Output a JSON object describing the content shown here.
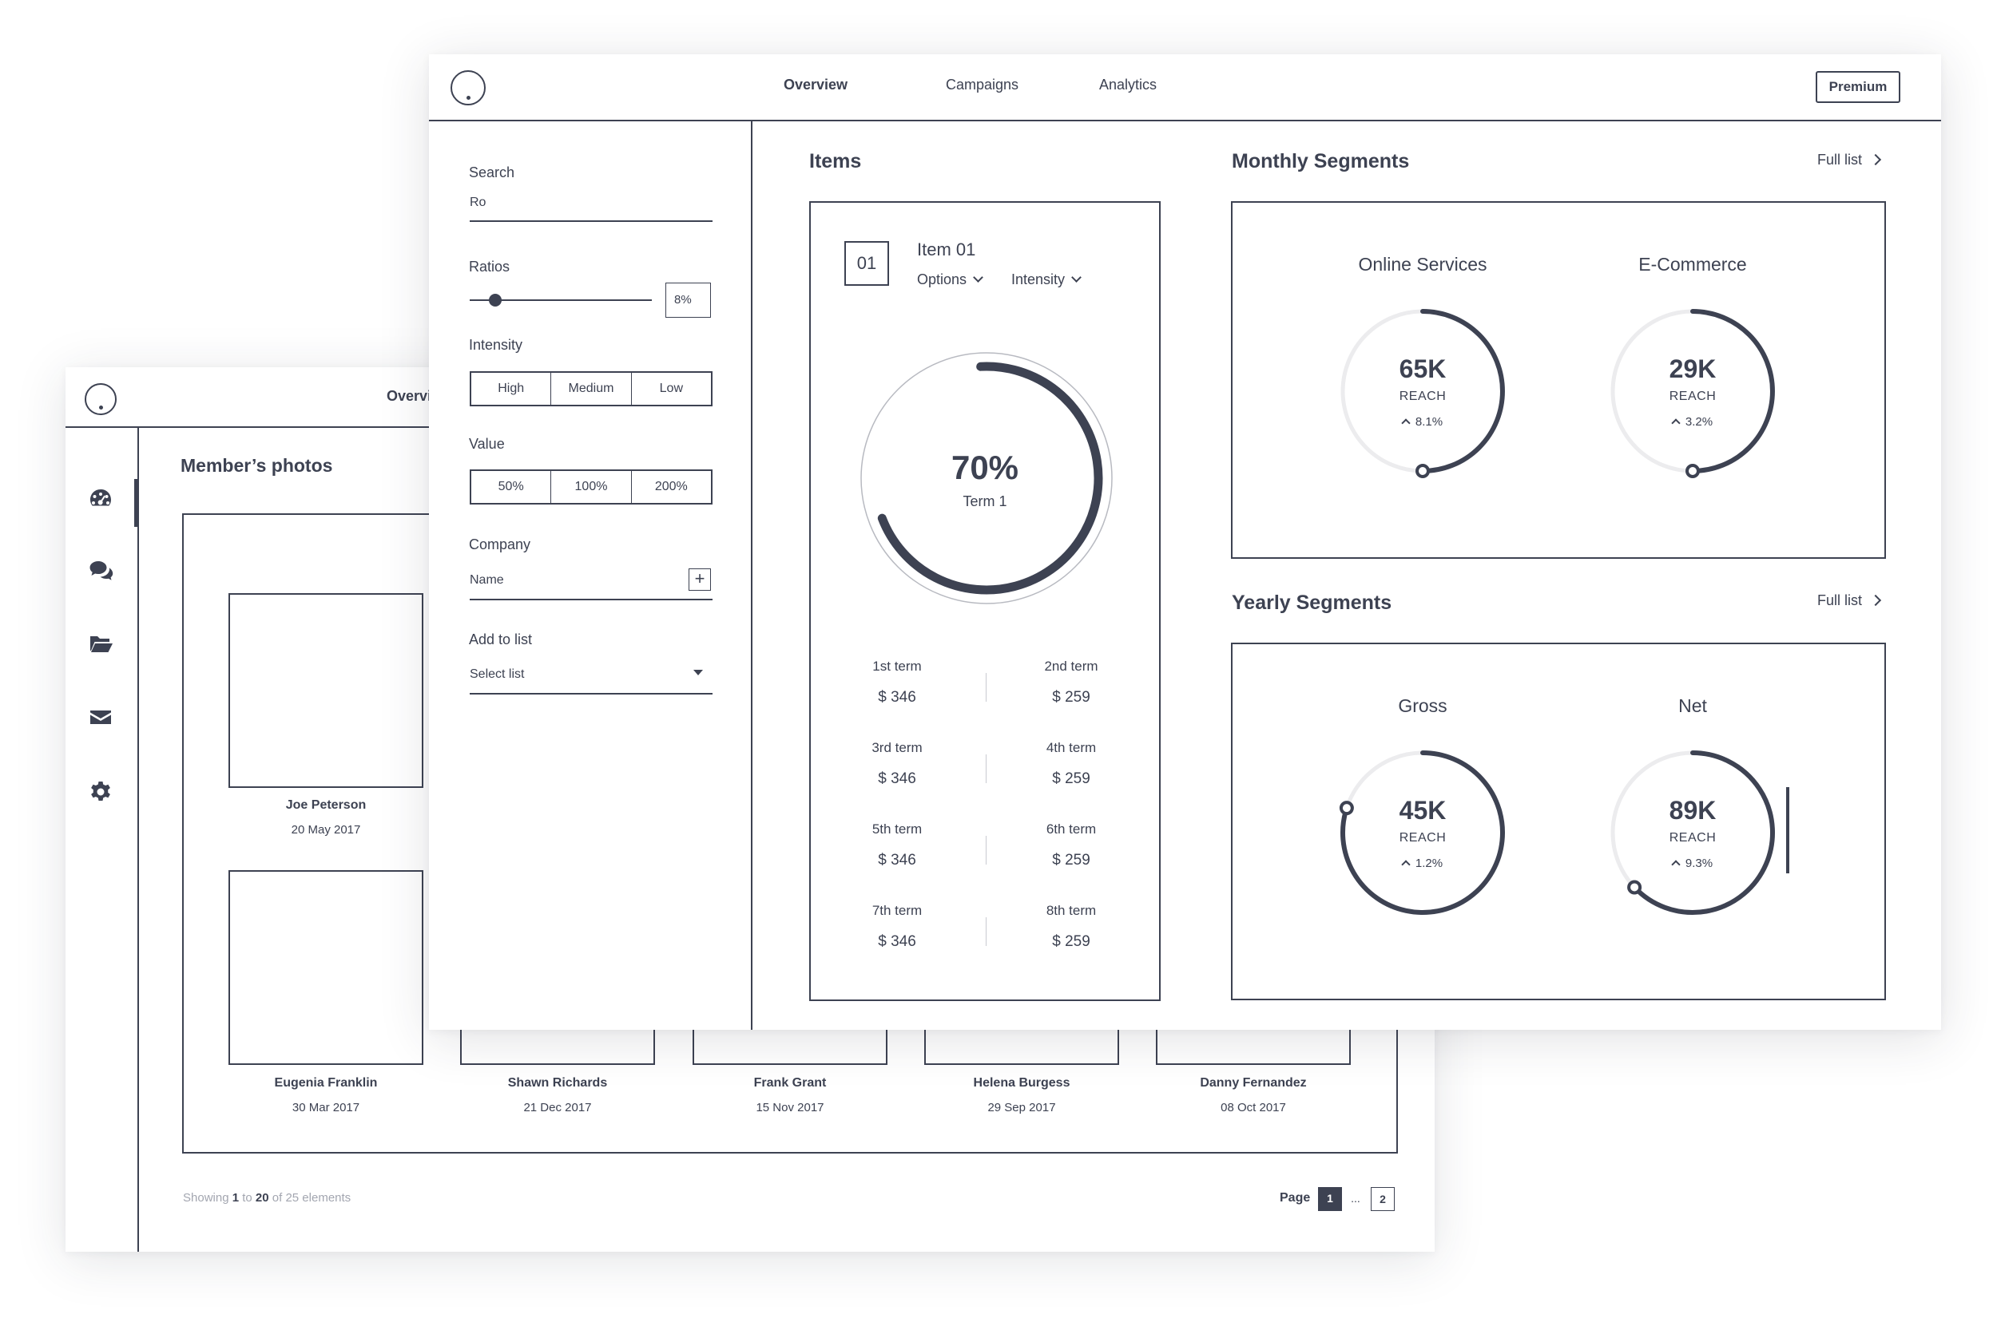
{
  "back": {
    "nav_partial": "Overvi",
    "title": "Member’s photos",
    "sidebar_icons": [
      "dashboard-icon",
      "chat-icon",
      "folder-icon",
      "mail-icon",
      "settings-icon"
    ],
    "members": [
      {
        "name": "Joe Peterson",
        "date": "20 May 2017"
      },
      {
        "name": "Eugenia Franklin",
        "date": "30 Mar 2017"
      },
      {
        "name": "Shawn Richards",
        "date": "21 Dec 2017"
      },
      {
        "name": "Frank Grant",
        "date": "15 Nov 2017"
      },
      {
        "name": "Helena Burgess",
        "date": "29 Sep 2017"
      },
      {
        "name": "Danny Fernandez",
        "date": "08 Oct 2017"
      }
    ],
    "pagination": {
      "showing_prefix": "Showing",
      "from": "1",
      "to_word": "to",
      "to": "20",
      "of_text": "of 25 elements",
      "page_label": "Page",
      "current": "1",
      "dots": "...",
      "next": "2"
    }
  },
  "front": {
    "nav": {
      "overview": "Overview",
      "campaigns": "Campaigns",
      "analytics": "Analytics",
      "premium": "Premium"
    },
    "filters": {
      "search_label": "Search",
      "search_value": "Ro",
      "ratios_label": "Ratios",
      "ratio_value": "8%",
      "ratio_fraction": 0.08,
      "intensity_label": "Intensity",
      "intensity_options": [
        "High",
        "Medium",
        "Low"
      ],
      "value_label": "Value",
      "value_options": [
        "50%",
        "100%",
        "200%"
      ],
      "company_label": "Company",
      "company_placeholder": "Name",
      "plus": "+",
      "addlist_label": "Add to list",
      "addlist_placeholder": "Select list"
    },
    "items": {
      "title": "Items",
      "number": "01",
      "item_title": "Item 01",
      "options_label": "Options",
      "intensity_label": "Intensity",
      "gauge_value": "70%",
      "gauge_fraction": 0.7,
      "gauge_label": "Term 1",
      "terms": [
        {
          "label": "1st term",
          "value": "$ 346"
        },
        {
          "label": "2nd term",
          "value": "$ 259"
        },
        {
          "label": "3rd term",
          "value": "$ 346"
        },
        {
          "label": "4th term",
          "value": "$ 259"
        },
        {
          "label": "5th term",
          "value": "$ 346"
        },
        {
          "label": "6th term",
          "value": "$ 259"
        },
        {
          "label": "7th term",
          "value": "$ 346"
        },
        {
          "label": "8th term",
          "value": "$ 259"
        }
      ]
    },
    "monthly": {
      "title": "Monthly Segments",
      "full_list": "Full list",
      "donuts": [
        {
          "name": "Online Services",
          "value": "65K",
          "sub": "REACH",
          "change": "8.1%",
          "fraction": 0.5
        },
        {
          "name": "E-Commerce",
          "value": "29K",
          "sub": "REACH",
          "change": "3.2%",
          "fraction": 0.5
        }
      ]
    },
    "yearly": {
      "title": "Yearly Segments",
      "full_list": "Full list",
      "donuts": [
        {
          "name": "Gross",
          "value": "45K",
          "sub": "REACH",
          "change": "1.2%",
          "fraction": 0.8
        },
        {
          "name": "Net",
          "value": "89K",
          "sub": "REACH",
          "change": "9.3%",
          "fraction": 0.63
        }
      ]
    }
  },
  "colors": {
    "ink": "#3d4252",
    "track": "#ececee",
    "muted": "#a3a6b0"
  }
}
